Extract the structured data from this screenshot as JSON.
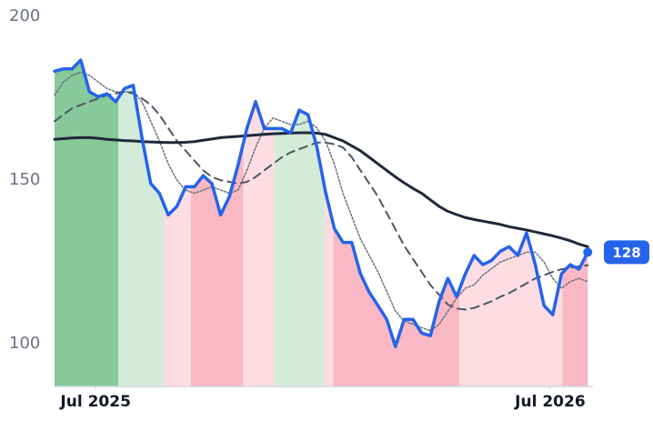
{
  "chart_data": {
    "type": "line",
    "x": [
      0,
      1,
      2,
      3,
      4,
      5,
      6,
      7,
      8,
      9,
      10,
      11,
      12,
      13,
      14,
      15,
      16,
      17,
      18,
      19,
      20,
      21,
      22,
      23,
      24,
      25,
      26,
      27,
      28,
      29,
      30,
      31,
      32,
      33,
      34,
      35,
      36,
      37,
      38,
      39,
      40,
      41,
      42,
      43,
      44,
      45,
      46,
      47,
      48,
      49,
      50,
      51,
      52,
      53,
      54,
      55,
      56,
      57,
      58,
      59,
      60,
      61
    ],
    "series": [
      {
        "color": "#2563eb",
        "style": "solid",
        "width": 3.5,
        "values": [
          183.3,
          184,
          184,
          186.7,
          177,
          175.5,
          176.4,
          174,
          178,
          179,
          163,
          149,
          146,
          139.4,
          142,
          148,
          148,
          151.4,
          149,
          139.4,
          145,
          154.7,
          165.8,
          174,
          165.8,
          165.8,
          165.8,
          164.4,
          171.4,
          170,
          160.3,
          146.4,
          135.3,
          131,
          131,
          121.4,
          115.8,
          111.7,
          107.5,
          99.2,
          107.5,
          107.5,
          103.3,
          102.5,
          113,
          120,
          114.4,
          121.4,
          127,
          124.2,
          125.5,
          128.3,
          129.7,
          127,
          133.9,
          124.2,
          111.7,
          108.9,
          121.4,
          124.2,
          122.8,
          128
        ]
      },
      {
        "color": "#1e293b",
        "style": "solid",
        "width": 3,
        "values": [
          162.5,
          162.7,
          162.9,
          163,
          163,
          162.8,
          162.5,
          162.3,
          162.1,
          162,
          161.8,
          161.7,
          161.6,
          161.5,
          161.5,
          161.6,
          161.8,
          162.2,
          162.6,
          163,
          163.2,
          163.4,
          163.6,
          163.8,
          164,
          164.2,
          164.3,
          164.4,
          164.5,
          164.5,
          164.4,
          164,
          163,
          162,
          160.5,
          159,
          157,
          155,
          153,
          151,
          149.2,
          147.5,
          146,
          144,
          142,
          140.5,
          139.5,
          138.6,
          138,
          137.5,
          137,
          136.5,
          135.8,
          135.3,
          134.8,
          134.2,
          133.6,
          133,
          132.3,
          131.5,
          130.5,
          129.7
        ]
      },
      {
        "color": "#4b5563",
        "style": "dashed",
        "width": 2,
        "values": [
          168,
          170,
          172,
          173,
          174,
          175,
          176,
          176.5,
          177,
          176.5,
          175,
          173,
          170,
          166,
          162,
          159,
          156,
          153,
          151,
          150,
          149.5,
          149,
          149.5,
          151,
          153,
          155,
          157,
          158.5,
          159.5,
          160.5,
          161.5,
          161.5,
          161,
          160,
          157,
          153,
          149,
          145,
          140,
          135,
          130,
          126,
          122,
          118,
          115,
          112,
          110.8,
          110.5,
          111,
          112,
          113,
          114.4,
          115.5,
          117,
          118.5,
          120,
          121,
          122,
          122.8,
          123.3,
          123.7,
          124
        ]
      },
      {
        "color": "#6b7280",
        "style": "dotted",
        "width": 1.5,
        "values": [
          176,
          180,
          182,
          183,
          182,
          180,
          178,
          177,
          177,
          177,
          174,
          168,
          162,
          155,
          150,
          147,
          146,
          147,
          148,
          147,
          146,
          147,
          153,
          160,
          166,
          169,
          168,
          167,
          167,
          168,
          166,
          162,
          155,
          146,
          139,
          132,
          127,
          122,
          116,
          110,
          107,
          106,
          105,
          104,
          106,
          110,
          114,
          117,
          118,
          121,
          123,
          125,
          126,
          127,
          128,
          128,
          125,
          120,
          117,
          119,
          120,
          119
        ]
      }
    ],
    "bands": [
      {
        "start": 0,
        "end": 7.3,
        "color": "#86c99a"
      },
      {
        "start": 7.3,
        "end": 12.5,
        "color": "#d2ecd9"
      },
      {
        "start": 12.5,
        "end": 15.6,
        "color": "#fddde3"
      },
      {
        "start": 15.6,
        "end": 21.6,
        "color": "#f9b8c4"
      },
      {
        "start": 21.6,
        "end": 25.2,
        "color": "#fddde3"
      },
      {
        "start": 25.2,
        "end": 30.9,
        "color": "#d2ecd9"
      },
      {
        "start": 30.9,
        "end": 31.9,
        "color": "#fddde3"
      },
      {
        "start": 31.9,
        "end": 46.3,
        "color": "#f9b8c4"
      },
      {
        "start": 46.3,
        "end": 58.1,
        "color": "#fddde3"
      },
      {
        "start": 58.1,
        "end": 61.6,
        "color": "#f9b8c4"
      }
    ],
    "xlim": [
      0,
      61.6
    ],
    "xticks": [
      {
        "value": 4.7,
        "label": "Jul 2025"
      },
      {
        "value": 56.7,
        "label": "Jul 2026"
      }
    ],
    "ylim": [
      87,
      204
    ],
    "yticks": [
      100,
      150,
      200
    ],
    "grid": false
  }
}
